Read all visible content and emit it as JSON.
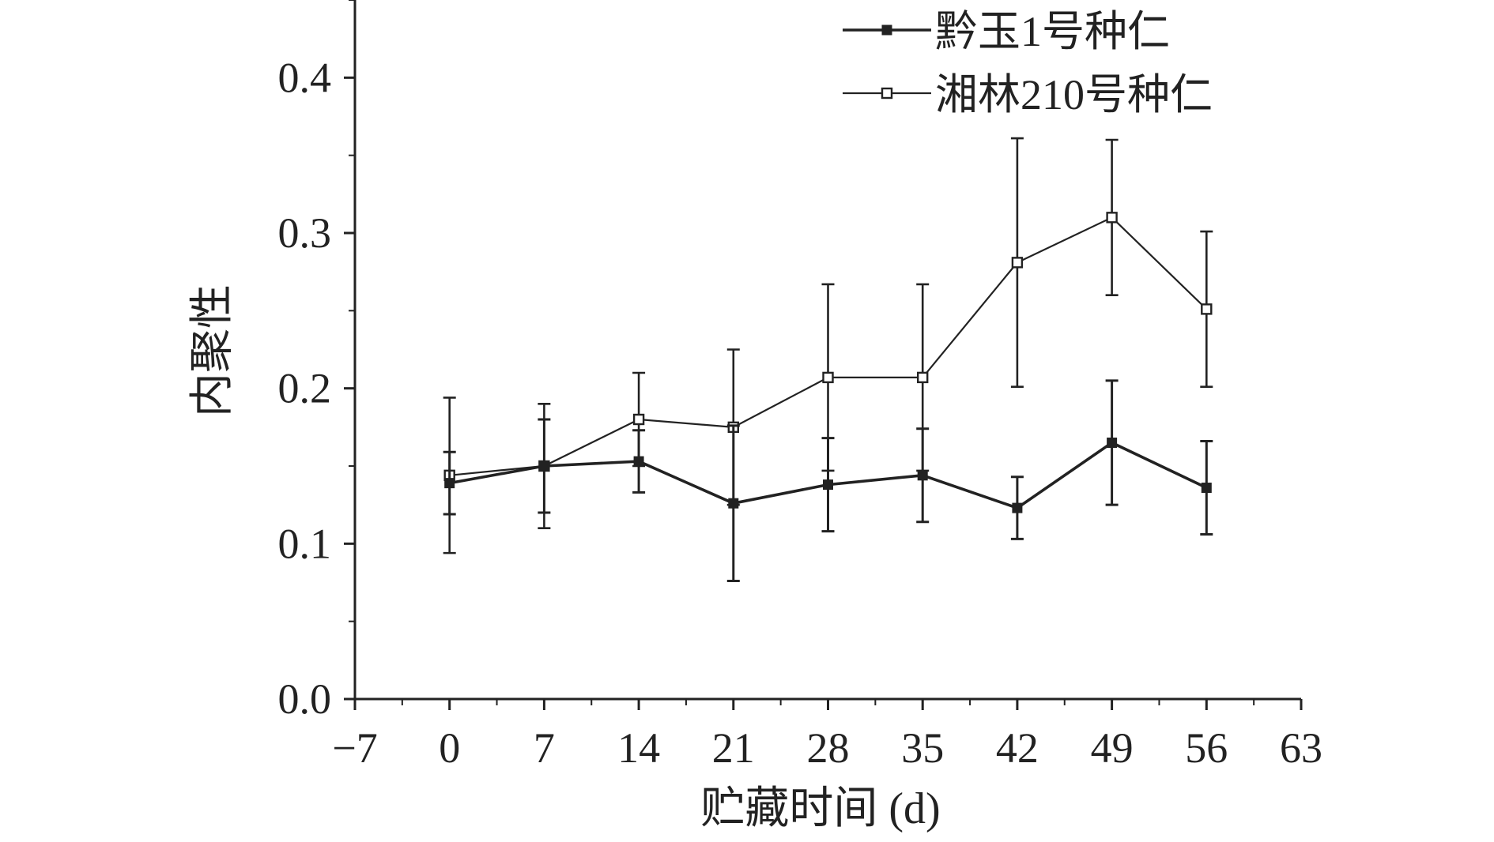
{
  "chart_data": {
    "type": "line",
    "xlabel": "贮藏时间 (d)",
    "ylabel": "内聚性",
    "xlim": [
      -7,
      63
    ],
    "ylim": [
      0,
      0.45
    ],
    "x_ticks": [
      -7,
      0,
      7,
      14,
      21,
      28,
      35,
      42,
      49,
      56,
      63
    ],
    "x_tick_labels": [
      "−7",
      "0",
      "7",
      "14",
      "21",
      "28",
      "35",
      "42",
      "49",
      "56",
      "63"
    ],
    "y_ticks": [
      0.0,
      0.1,
      0.2,
      0.3,
      0.4
    ],
    "y_tick_labels": [
      "0.0",
      "0.1",
      "0.2",
      "0.3",
      "0.4"
    ],
    "grid": false,
    "legend_position": "top-right",
    "x": [
      0,
      7,
      14,
      21,
      28,
      35,
      42,
      49,
      56
    ],
    "series": [
      {
        "name": "黔玉1号种仁",
        "marker": "filled-square",
        "color": "#222222",
        "values": [
          0.139,
          0.15,
          0.153,
          0.126,
          0.138,
          0.144,
          0.123,
          0.165,
          0.136
        ],
        "errors": [
          0.02,
          0.03,
          0.02,
          0.05,
          0.03,
          0.03,
          0.02,
          0.04,
          0.03
        ]
      },
      {
        "name": "湘林210号种仁",
        "marker": "open-square",
        "color": "#222222",
        "values": [
          0.144,
          0.15,
          0.18,
          0.175,
          0.207,
          0.207,
          0.281,
          0.31,
          0.251
        ],
        "errors": [
          0.05,
          0.04,
          0.03,
          0.05,
          0.06,
          0.06,
          0.08,
          0.05,
          0.05
        ]
      }
    ]
  }
}
